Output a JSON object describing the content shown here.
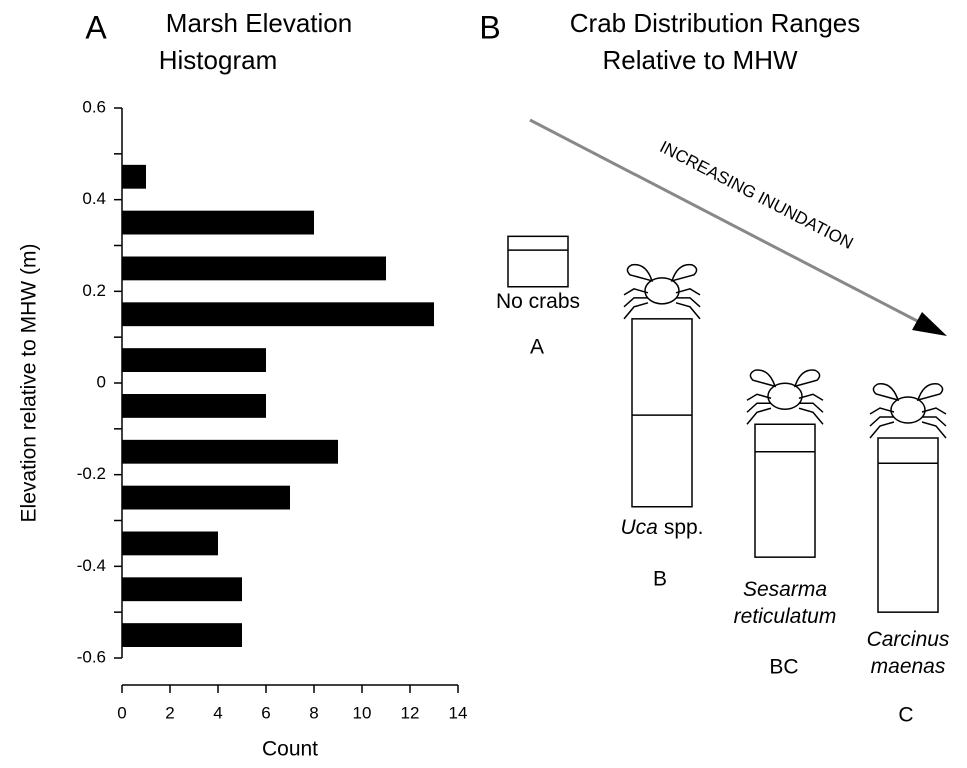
{
  "chart_data": [
    {
      "type": "histogram",
      "panel_label": "A",
      "title": [
        "Marsh Elevation",
        "Histogram"
      ],
      "orientation": "horizontal",
      "bins": [
        -0.6,
        -0.5,
        -0.4,
        -0.3,
        -0.2,
        -0.1,
        0.0,
        0.1,
        0.2,
        0.3,
        0.4,
        0.5
      ],
      "values": [
        5,
        5,
        4,
        7,
        9,
        6,
        6,
        13,
        11,
        8,
        1
      ],
      "color": "#000000",
      "xlabel": "Count",
      "ylabel": "Elevation relative to MHW (m)",
      "xlim": [
        0,
        14
      ],
      "xticks": [
        0,
        2,
        4,
        6,
        8,
        10,
        12,
        14
      ],
      "ylim": [
        -0.6,
        0.6
      ],
      "yticks": [
        0.6,
        0.4,
        0.2,
        0,
        -0.2,
        -0.4,
        -0.6
      ],
      "yminorticks": [
        0.5,
        0.3,
        0.1,
        -0.1,
        -0.3,
        -0.5
      ]
    },
    {
      "type": "range",
      "panel_label": "B",
      "title": [
        "Crab Distribution Ranges",
        "Relative to MHW"
      ],
      "annotation": "INCREASING INUNDATION",
      "ylim": [
        -0.6,
        0.6
      ],
      "ranges": [
        {
          "name": [
            "No crabs"
          ],
          "italic": false,
          "group": "A",
          "high": 0.32,
          "mid": 0.29,
          "low": 0.21
        },
        {
          "name": [
            "Uca"
          ],
          "suffix": "spp.",
          "italic": true,
          "group": "B",
          "high": 0.14,
          "mid": -0.07,
          "low": -0.27
        },
        {
          "name": [
            "Sesarma",
            "reticulatum"
          ],
          "italic": true,
          "group": "BC",
          "high": -0.09,
          "mid": -0.15,
          "low": -0.38
        },
        {
          "name": [
            "Carcinus",
            "maenas"
          ],
          "italic": true,
          "group": "C",
          "high": -0.12,
          "mid": -0.175,
          "low": -0.5
        }
      ]
    }
  ]
}
